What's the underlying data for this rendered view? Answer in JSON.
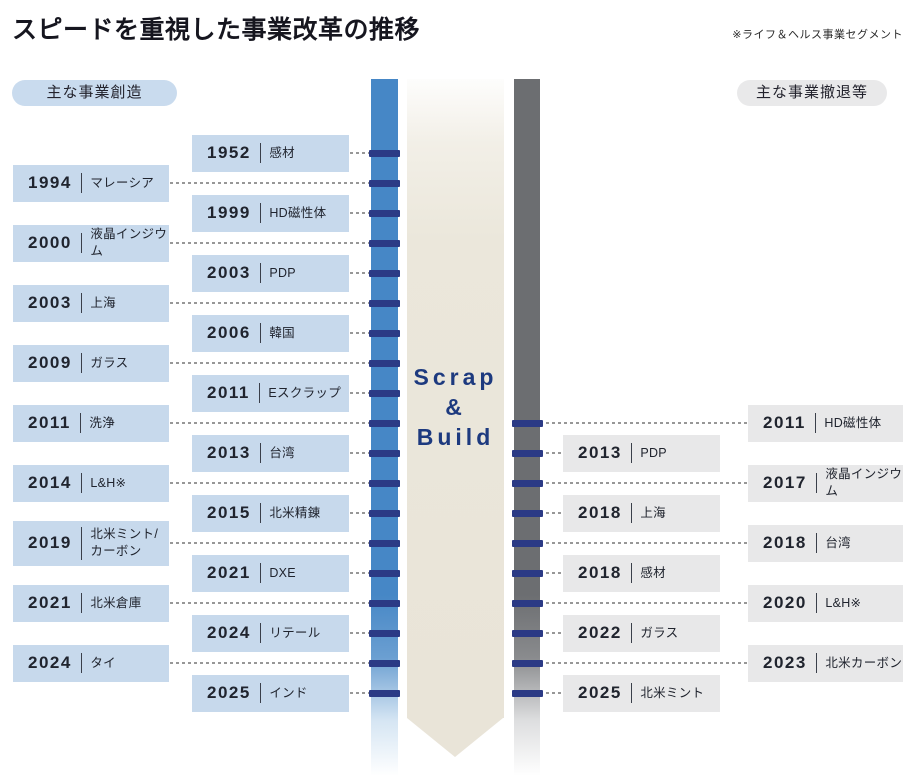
{
  "title": "スピードを重視した事業改革の推移",
  "note": "※ライフ＆ヘルス事業セグメント",
  "left_header": "主な事業創造",
  "right_header": "主な事業撤退等",
  "center_label": {
    "line1": "Scrap",
    "line2": "&",
    "line3": "Build"
  },
  "colors": {
    "left_box": "#c7d9ec",
    "right_box": "#e8e8e9",
    "blue_bar": "#4687c6",
    "gray_bar": "#6c6e71",
    "beige_arrow": "#e9e4d8",
    "tick_navy": "#2b3a85",
    "center_text_navy": "#1d3a7f"
  },
  "left_events": [
    {
      "year": "1952",
      "label": "感材",
      "col": "inner",
      "row": 0
    },
    {
      "year": "1994",
      "label": "マレーシア",
      "col": "outer",
      "row": 1
    },
    {
      "year": "1999",
      "label": "HD磁性体",
      "col": "inner",
      "row": 2
    },
    {
      "year": "2000",
      "label": "液晶インジウム",
      "col": "outer",
      "row": 3
    },
    {
      "year": "2003",
      "label": "PDP",
      "col": "inner",
      "row": 4
    },
    {
      "year": "2003",
      "label": "上海",
      "col": "outer",
      "row": 5
    },
    {
      "year": "2006",
      "label": "韓国",
      "col": "inner",
      "row": 6
    },
    {
      "year": "2009",
      "label": "ガラス",
      "col": "outer",
      "row": 7
    },
    {
      "year": "2011",
      "label": "Eスクラップ",
      "col": "inner",
      "row": 8
    },
    {
      "year": "2011",
      "label": "洗浄",
      "col": "outer",
      "row": 9
    },
    {
      "year": "2013",
      "label": "台湾",
      "col": "inner",
      "row": 10
    },
    {
      "year": "2014",
      "label": "L&H※",
      "col": "outer",
      "row": 11
    },
    {
      "year": "2015",
      "label": "北米精錬",
      "col": "inner",
      "row": 12
    },
    {
      "year": "2019",
      "label": "北米ミント/\nカーボン",
      "col": "outer",
      "row": 13
    },
    {
      "year": "2021",
      "label": "DXE",
      "col": "inner",
      "row": 14
    },
    {
      "year": "2021",
      "label": "北米倉庫",
      "col": "outer",
      "row": 15
    },
    {
      "year": "2024",
      "label": "リテール",
      "col": "inner",
      "row": 16
    },
    {
      "year": "2024",
      "label": "タイ",
      "col": "outer",
      "row": 17
    },
    {
      "year": "2025",
      "label": "インド",
      "col": "inner",
      "row": 18
    }
  ],
  "right_events": [
    {
      "year": "2011",
      "label": "HD磁性体",
      "col": "outer",
      "row": 9
    },
    {
      "year": "2013",
      "label": "PDP",
      "col": "inner",
      "row": 10
    },
    {
      "year": "2017",
      "label": "液晶インジウム",
      "col": "outer",
      "row": 11
    },
    {
      "year": "2018",
      "label": "上海",
      "col": "inner",
      "row": 12
    },
    {
      "year": "2018",
      "label": "台湾",
      "col": "outer",
      "row": 13
    },
    {
      "year": "2018",
      "label": "感材",
      "col": "inner",
      "row": 14
    },
    {
      "year": "2020",
      "label": "L&H※",
      "col": "outer",
      "row": 15
    },
    {
      "year": "2022",
      "label": "ガラス",
      "col": "inner",
      "row": 16
    },
    {
      "year": "2023",
      "label": "北米カーボン",
      "col": "outer",
      "row": 17
    },
    {
      "year": "2025",
      "label": "北米ミント",
      "col": "inner",
      "row": 18
    }
  ]
}
